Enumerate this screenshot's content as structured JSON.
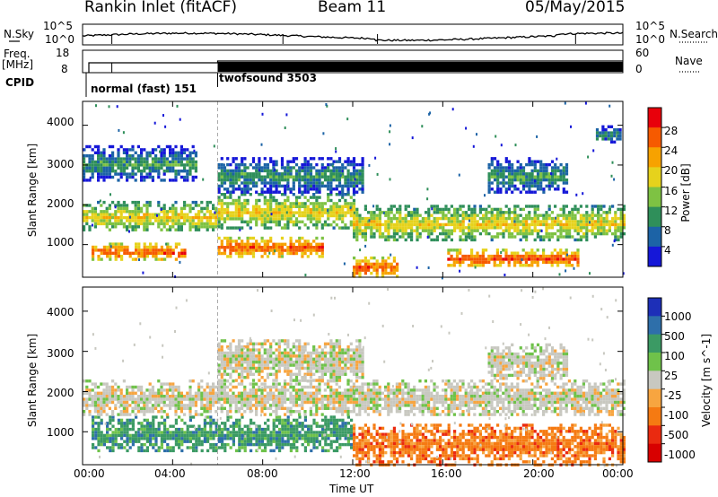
{
  "header": {
    "station": "Rankin Inlet (fitACF)",
    "beam": "Beam 11",
    "date": "05/May/2015"
  },
  "strip": {
    "nsky_label": "N.Sky",
    "nsky_ticks": [
      "10^5",
      "10^0"
    ],
    "nsearch_label": "N.Search",
    "nsearch_ticks": [
      "10^5",
      "10^0"
    ],
    "freq_label_1": "Freq.",
    "freq_label_2": "[MHz]",
    "freq_ticks": [
      "18",
      "8"
    ],
    "nave_label": "Nave",
    "nave_ticks": [
      "60",
      "0"
    ],
    "cpid_label": "CPID",
    "modes": [
      {
        "name": "normal (fast) 151",
        "start_hour": 0.0
      },
      {
        "name": "twofsound 3503",
        "start_hour": 6.0
      }
    ]
  },
  "chart_data": [
    {
      "type": "heatmap",
      "title": "",
      "ylabel": "Slant Range [km]",
      "xlabel": "",
      "xlim": [
        0,
        24
      ],
      "ylim": [
        180,
        4600
      ],
      "yticks": [
        1000,
        2000,
        3000,
        4000
      ],
      "colorbar": {
        "label": "Power [dB]",
        "ticks": [
          "28",
          "24",
          "20",
          "16",
          "12",
          "8",
          "4"
        ],
        "colors": [
          "#e8000b",
          "#f65a00",
          "#f7a200",
          "#e6d21c",
          "#7ec243",
          "#2f8f5a",
          "#1c63a6",
          "#1517d8"
        ]
      },
      "bands": [
        {
          "name": "lower",
          "level": 24,
          "segments": [
            [
              0.4,
              4.6,
              650,
              1050
            ],
            [
              6.0,
              10.6,
              700,
              1200
            ],
            [
              12.0,
              14.0,
              200,
              700
            ],
            [
              16.2,
              22.0,
              450,
              900
            ]
          ]
        },
        {
          "name": "middle",
          "level": 16,
          "segments": [
            [
              0.0,
              6.0,
              1350,
              2100
            ],
            [
              6.0,
              12.0,
              1400,
              2300
            ],
            [
              12.0,
              24.0,
              1100,
              2000
            ]
          ]
        },
        {
          "name": "upper",
          "level": 8,
          "segments": [
            [
              0.0,
              5.0,
              2600,
              3500
            ],
            [
              6.0,
              12.5,
              2300,
              3200
            ],
            [
              18.0,
              21.5,
              2300,
              3200
            ],
            [
              22.8,
              23.9,
              3600,
              4000
            ]
          ]
        }
      ]
    },
    {
      "type": "heatmap",
      "title": "",
      "ylabel": "Slant Range [km]",
      "xlabel": "Time UT",
      "xlim": [
        0,
        24
      ],
      "ylim": [
        180,
        4600
      ],
      "yticks": [
        1000,
        2000,
        3000,
        4000
      ],
      "xticks": [
        "00:00",
        "04:00",
        "08:00",
        "12:00",
        "16:00",
        "20:00",
        "00:00"
      ],
      "colorbar": {
        "label": "Velocity [m s^-1]",
        "ticks": [
          "1000",
          "500",
          "100",
          "25",
          "-25",
          "-100",
          "-500",
          "-1000"
        ],
        "colors": [
          "#1d2fb8",
          "#2e6faa",
          "#3b9a64",
          "#6fc24a",
          "#c8c8c0",
          "#f7a540",
          "#f57a12",
          "#ea2a10",
          "#d80000"
        ]
      },
      "bands": [
        {
          "name": "lower-positive",
          "level": 100,
          "segments": [
            [
              0.4,
              12.0,
              500,
              1400
            ]
          ]
        },
        {
          "name": "lower-negative",
          "level": -500,
          "segments": [
            [
              12.0,
              24.0,
              200,
              1200
            ]
          ]
        },
        {
          "name": "middle-ground",
          "level": 0,
          "segments": [
            [
              0.0,
              24.0,
              1400,
              2300
            ]
          ]
        },
        {
          "name": "upper-ground",
          "level": 0,
          "segments": [
            [
              6.0,
              12.5,
              2300,
              3300
            ],
            [
              18.0,
              21.5,
              2300,
              3200
            ]
          ]
        }
      ]
    }
  ]
}
